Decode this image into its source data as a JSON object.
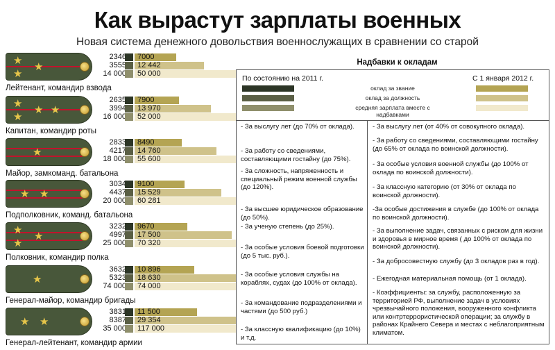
{
  "header": {
    "title": "Как вырастут зарплаты военных",
    "subtitle": "Новая система денежного довольствия военнослужащих в сравнении со старой"
  },
  "ranks": [
    {
      "label": "Лейтенант, командир взвода",
      "stars": 3,
      "stripes": 1,
      "old": [
        "2346",
        "3555",
        "14 000"
      ],
      "new": [
        "7000",
        "12 442",
        "50 000"
      ]
    },
    {
      "label": "Капитан, командир роты",
      "stars": 4,
      "stripes": 1,
      "old": [
        "2635",
        "3994",
        "16 000"
      ],
      "new": [
        "7900",
        "13 970",
        "52 000"
      ]
    },
    {
      "label": "Майор, замкоманд. батальона",
      "stars": 1,
      "stripes": 2,
      "old": [
        "2833",
        "4217",
        "18 000"
      ],
      "new": [
        "8490",
        "14 760",
        "55 600"
      ]
    },
    {
      "label": "Подполковник, команд. батальона",
      "stars": 2,
      "stripes": 2,
      "old": [
        "3034",
        "4437",
        "20 000"
      ],
      "new": [
        "9100",
        "15 529",
        "60 281"
      ]
    },
    {
      "label": "Полковник, командир полка",
      "stars": 3,
      "stripes": 2,
      "old": [
        "3232",
        "4997",
        "25 000"
      ],
      "new": [
        "9670",
        "17 500",
        "70 320"
      ]
    },
    {
      "label": "Генерал-майор, командир бригады",
      "stars": 1,
      "stripes": 0,
      "old": [
        "3632",
        "5323",
        "74 000"
      ],
      "new": [
        "10 896",
        "18 630",
        "74 000"
      ]
    },
    {
      "label": "Генерал-лейтенант, командир армии",
      "stars": 2,
      "stripes": 0,
      "old": [
        "3831",
        "8387",
        "35 000"
      ],
      "new": [
        "11 500",
        "29 354",
        "117 000"
      ]
    }
  ],
  "legend": {
    "title": "Надбавки к окладам",
    "old_label": "По состоянию на 2011 г.",
    "new_label": "С 1 января 2012 г.",
    "items": [
      "оклад за звание",
      "оклад за должность",
      "средняя зарплата вместе с надбавками"
    ],
    "colors_old": [
      "#2c3526",
      "#5a5f45",
      "#8f8f6c"
    ],
    "colors_new": [
      "#b4a453",
      "#cfc28a",
      "#f1e9cc"
    ]
  },
  "left_list": [
    "- За выслугу лет (до 70% от оклада).",
    "- За работу со сведениями, составляющими гостайну (до 75%).",
    "- За сложность, напряженность и специальный режим военной службы (до 120%).",
    "- За высшее юридическое образование (до 50%).",
    "- За ученую степень (до 25%).",
    "- За особые условия боевой подготовки (до 5 тыс. руб.).",
    "- За особые условия службы на кораблях, судах (до 100% от оклада).",
    "- За командование подразделениями и частями (до 500 руб.)",
    "- За классную квалификацию (до 10%) и т.д."
  ],
  "right_list": [
    "- За выслугу лет (от 40% от совокупного оклада).",
    "- За работу со сведениями, составляющими гостайну (до 65% от оклада по воинской должности).",
    "- За особые условия военной службы (до 100% от оклада по воинской должности).",
    "- За классную категорию (от 30%  от оклада по воинской должности).",
    "-За особые достижения в службе (до 100% от оклада по воинской должности).",
    "- За выполнение задач, связанных с риском для жизни и здоровья в мирное время ( до 100% от оклада по воинской должности).",
    "- За добросовестную службу (до 3 окладов раз в год).",
    "- Ежегодная материальная помощь (от 1 оклада).",
    "- Коэффициенты: за службу, расположенную за территорией РФ, выполнение задач в условиях чрезвычайного положения, вооруженного конфликта или контртеррористической операции; за службу в районах Крайнего Севера и местах с неблагоприятным климатом."
  ]
}
